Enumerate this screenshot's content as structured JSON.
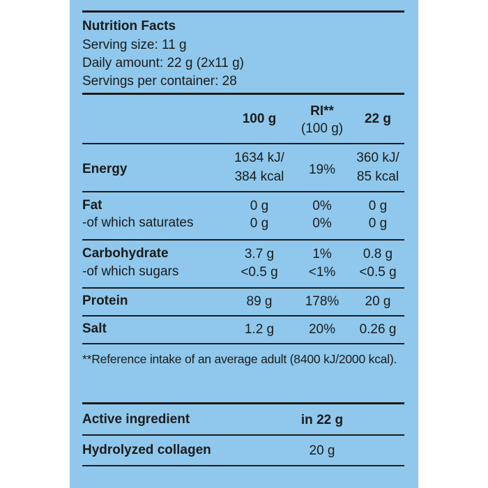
{
  "header": {
    "title": "Nutrition Facts",
    "serving_size": "Serving size: 11 g",
    "daily_amount": "Daily amount: 22 g (2x11 g)",
    "servings": "Servings per container: 28"
  },
  "columns": {
    "per100": "100 g",
    "ri": "RI**",
    "ri_sub": "(100 g)",
    "per22": "22 g"
  },
  "rows": {
    "energy": {
      "label": "Energy",
      "per100_l1": "1634 kJ/",
      "per100_l2": "384 kcal",
      "ri": "19%",
      "per22_l1": "360 kJ/",
      "per22_l2": "85 kcal"
    },
    "fat": {
      "label": "Fat",
      "per100": "0 g",
      "ri": "0%",
      "per22": "0 g"
    },
    "saturates": {
      "label": "-of which saturates",
      "per100": "0 g",
      "ri": "0%",
      "per22": "0 g"
    },
    "carbohydrate": {
      "label": "Carbohydrate",
      "per100": "3.7 g",
      "ri": "1%",
      "per22": "0.8 g"
    },
    "sugars": {
      "label": "-of which sugars",
      "per100": "<0.5 g",
      "ri": "<1%",
      "per22": "<0.5 g"
    },
    "protein": {
      "label": "Protein",
      "per100": "89 g",
      "ri": "178%",
      "per22": "20 g"
    },
    "salt": {
      "label": "Salt",
      "per100": "1.2 g",
      "ri": "20%",
      "per22": "0.26 g"
    }
  },
  "footnote": "**Reference intake of an average adult (8400 kJ/2000 kcal).",
  "active": {
    "header_label": "Active ingredient",
    "header_amount": "in 22 g",
    "ingredient": "Hydrolyzed collagen",
    "amount": "20 g"
  }
}
